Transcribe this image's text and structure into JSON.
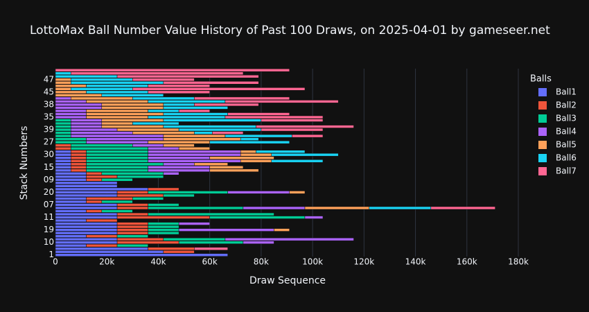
{
  "chart_data": {
    "type": "stacked-hbar",
    "title": "LottoMax Ball Number Value History of Past 100 Draws, on 2025-04-01 by gameseer.net",
    "x_label": "Draw Sequence",
    "y_label": "Stack Numbers",
    "legend_title": "Balls",
    "categories": [
      "1",
      null,
      null,
      null,
      "10",
      null,
      null,
      null,
      "19",
      null,
      null,
      null,
      "11",
      null,
      null,
      null,
      "07",
      null,
      null,
      null,
      "20",
      null,
      null,
      null,
      "09",
      null,
      null,
      null,
      "15",
      null,
      null,
      null,
      "30",
      null,
      null,
      null,
      "27",
      null,
      null,
      null,
      "39",
      null,
      null,
      null,
      "35",
      null,
      null,
      null,
      "38",
      null,
      null,
      null,
      "45",
      null,
      null,
      null,
      "47",
      null,
      null,
      null
    ],
    "xlim": [
      0,
      180000
    ],
    "xticks": [
      0,
      {
        "value": 20000,
        "label": "20k"
      },
      {
        "value": 40000,
        "label": "40k"
      },
      {
        "value": 60000,
        "label": "60k"
      },
      {
        "value": 80000,
        "label": "80k"
      },
      {
        "value": 100000,
        "label": "100k"
      },
      {
        "value": 120000,
        "label": "120k"
      },
      {
        "value": 140000,
        "label": "140k"
      },
      {
        "value": 160000,
        "label": "160k"
      },
      {
        "value": 180000,
        "label": "180k"
      }
    ],
    "grid": true,
    "series": [
      {
        "name": "Ball1",
        "color": "#636efa",
        "values": [
          67000,
          42000,
          36000,
          12000,
          24000,
          24000,
          12000,
          24000,
          24000,
          24000,
          24000,
          12000,
          24000,
          24000,
          12000,
          24000,
          24000,
          12000,
          12000,
          24000,
          24000,
          36000,
          24000,
          24000,
          12000,
          12000,
          12000,
          6000,
          6000,
          6000,
          6000,
          6000,
          6000,
          6000,
          0,
          0,
          0,
          0,
          0,
          0,
          0,
          0,
          0,
          0,
          0,
          0,
          0,
          0,
          0,
          0,
          0,
          0,
          0,
          0,
          0,
          0,
          0,
          0,
          0,
          0
        ]
      },
      {
        "name": "Ball2",
        "color": "#ef553b",
        "values": [
          0,
          12000,
          18000,
          12000,
          24000,
          18000,
          12000,
          12000,
          12000,
          12000,
          12000,
          12000,
          36000,
          12000,
          6000,
          12000,
          12000,
          6000,
          18000,
          18000,
          12000,
          12000,
          0,
          0,
          6000,
          12000,
          6000,
          6000,
          6000,
          6000,
          6000,
          6000,
          6000,
          6000,
          6000,
          6000,
          0,
          0,
          0,
          0,
          0,
          0,
          0,
          0,
          0,
          0,
          0,
          0,
          0,
          0,
          0,
          0,
          0,
          0,
          0,
          0,
          0,
          0,
          0,
          0
        ]
      },
      {
        "name": "Ball3",
        "color": "#00cc96",
        "values": [
          0,
          0,
          0,
          12000,
          25000,
          24000,
          12000,
          12000,
          12000,
          12000,
          12000,
          0,
          37000,
          49000,
          12000,
          37000,
          12000,
          12000,
          12000,
          12000,
          31000,
          0,
          0,
          0,
          12000,
          18000,
          24000,
          24000,
          24000,
          30000,
          24000,
          24000,
          24000,
          24000,
          30000,
          24000,
          12000,
          12000,
          6000,
          6000,
          6000,
          6000,
          6000,
          6000,
          0,
          0,
          0,
          0,
          0,
          0,
          0,
          0,
          0,
          0,
          0,
          0,
          0,
          0,
          0,
          0
        ]
      },
      {
        "name": "Ball4",
        "color": "#ab63fa",
        "values": [
          0,
          0,
          0,
          0,
          12000,
          50000,
          0,
          0,
          37000,
          0,
          12000,
          0,
          7000,
          0,
          0,
          24000,
          0,
          0,
          0,
          0,
          24000,
          0,
          0,
          0,
          0,
          0,
          6000,
          24000,
          24000,
          12000,
          36000,
          24000,
          36000,
          36000,
          12000,
          12000,
          24000,
          30000,
          36000,
          24000,
          18000,
          12000,
          12000,
          12000,
          12000,
          12000,
          12000,
          18000,
          18000,
          12000,
          6000,
          0,
          0,
          0,
          0,
          0,
          0,
          0,
          0,
          0
        ]
      },
      {
        "name": "Ball5",
        "color": "#ffa15a",
        "values": [
          0,
          0,
          0,
          0,
          0,
          0,
          0,
          0,
          6000,
          0,
          0,
          0,
          0,
          0,
          0,
          25000,
          0,
          0,
          0,
          0,
          6000,
          0,
          0,
          0,
          0,
          0,
          0,
          19000,
          13000,
          13000,
          12000,
          25000,
          12000,
          6000,
          12000,
          12000,
          24000,
          30000,
          24000,
          24000,
          24000,
          24000,
          12000,
          24000,
          24000,
          30000,
          24000,
          24000,
          24000,
          24000,
          24000,
          18000,
          12000,
          6000,
          12000,
          6000,
          6000,
          0,
          0,
          0
        ]
      },
      {
        "name": "Ball6",
        "color": "#19d3f3",
        "values": [
          0,
          0,
          0,
          0,
          0,
          0,
          0,
          0,
          0,
          0,
          0,
          0,
          0,
          0,
          0,
          24000,
          0,
          0,
          0,
          0,
          0,
          0,
          0,
          0,
          0,
          0,
          0,
          0,
          0,
          0,
          20000,
          0,
          26000,
          19000,
          0,
          0,
          31000,
          7000,
          26000,
          7000,
          32000,
          36000,
          18000,
          38000,
          30000,
          25000,
          12000,
          25000,
          12000,
          30000,
          24000,
          24000,
          24000,
          24000,
          24000,
          36000,
          24000,
          24000,
          6000,
          0
        ]
      },
      {
        "name": "Ball7",
        "color": "#ff6692",
        "values": [
          0,
          0,
          13000,
          0,
          0,
          0,
          0,
          0,
          0,
          0,
          0,
          0,
          0,
          0,
          0,
          25000,
          0,
          0,
          0,
          0,
          0,
          0,
          0,
          0,
          0,
          0,
          0,
          0,
          0,
          0,
          0,
          0,
          0,
          0,
          0,
          0,
          0,
          0,
          12000,
          12000,
          24000,
          38000,
          0,
          24000,
          38000,
          24000,
          12000,
          0,
          25000,
          44000,
          37000,
          0,
          24000,
          67000,
          24000,
          37000,
          24000,
          55000,
          67000,
          91000
        ]
      }
    ]
  }
}
